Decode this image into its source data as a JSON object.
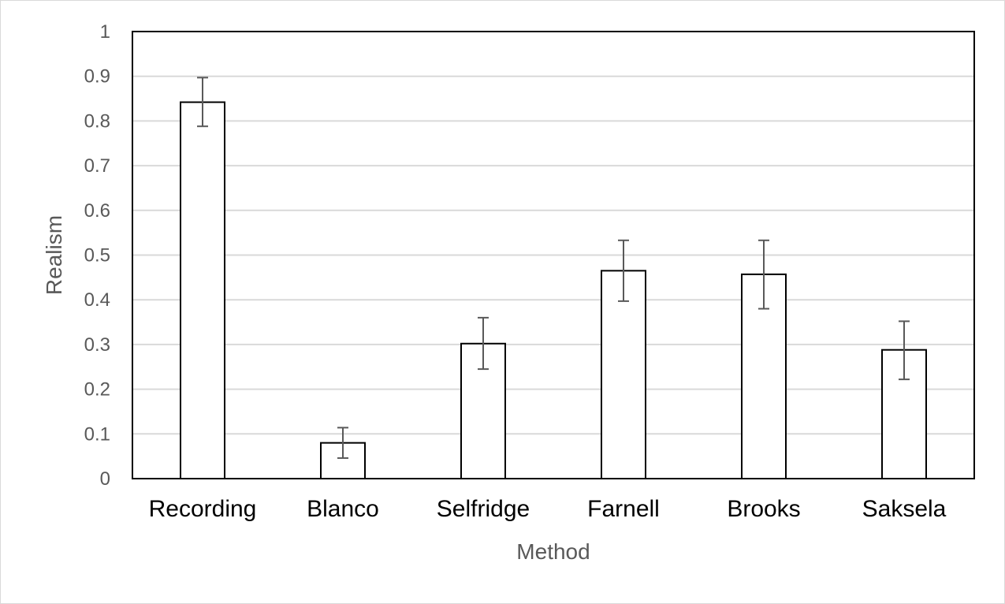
{
  "chart_data": {
    "type": "bar",
    "title": "",
    "xlabel": "Method",
    "ylabel": "Realism",
    "categories": [
      "Recording",
      "Blanco",
      "Selfridge",
      "Farnell",
      "Brooks",
      "Saksela"
    ],
    "values": [
      0.842,
      0.08,
      0.302,
      0.465,
      0.457,
      0.288
    ],
    "error_low": [
      0.788,
      0.046,
      0.245,
      0.397,
      0.38,
      0.222
    ],
    "error_high": [
      0.897,
      0.114,
      0.36,
      0.533,
      0.533,
      0.352
    ],
    "ylim": [
      0,
      1
    ],
    "yticks": [
      "0",
      "0.1",
      "0.2",
      "0.3",
      "0.4",
      "0.5",
      "0.6",
      "0.7",
      "0.8",
      "0.9",
      "1"
    ],
    "grid": true,
    "legend": "none",
    "colors": {
      "bar_fill": "#ffffff",
      "bar_stroke": "#000000",
      "error_bar": "#595959",
      "grid": "#d9d9d9",
      "frame": "#000000"
    }
  }
}
